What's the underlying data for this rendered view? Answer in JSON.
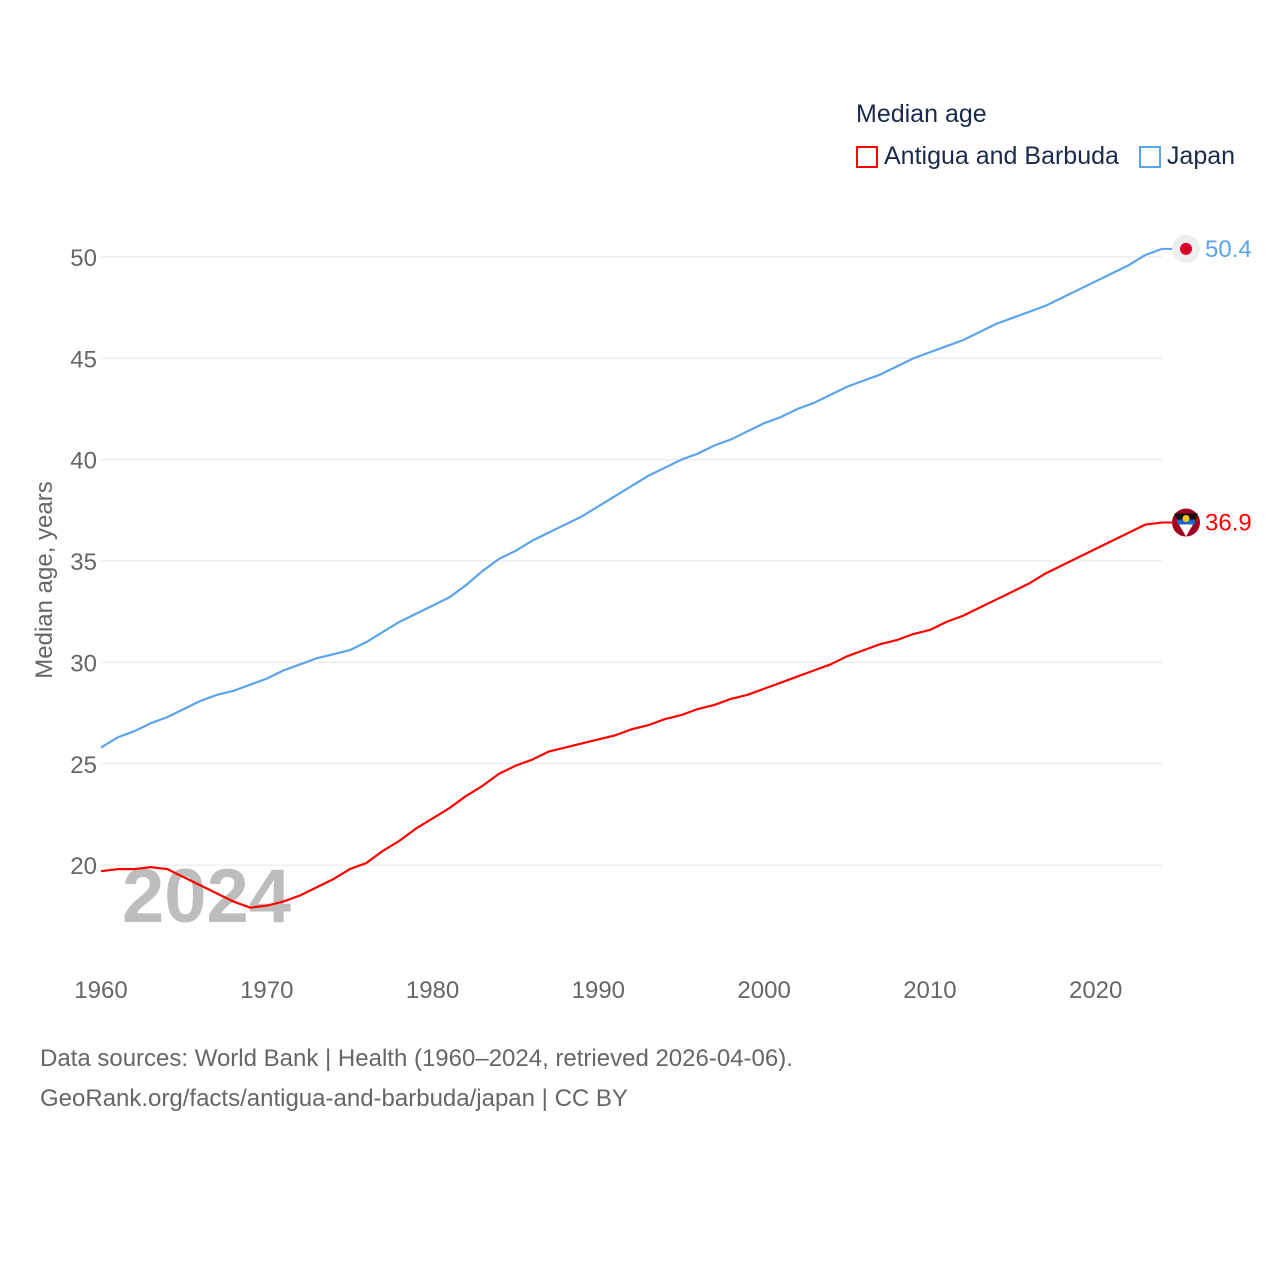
{
  "chart_data": {
    "type": "line",
    "title": "Median age",
    "ylabel": "Median age, years",
    "xlabel": "",
    "xlim": [
      1960,
      2024
    ],
    "ylim": [
      15,
      52
    ],
    "x_ticks": [
      1960,
      1970,
      1980,
      1990,
      2000,
      2010,
      2020
    ],
    "y_ticks": [
      20,
      25,
      30,
      35,
      40,
      45,
      50
    ],
    "grid": true,
    "legend_position": "top-right",
    "watermark_year": "2024",
    "x": [
      1960,
      1961,
      1962,
      1963,
      1964,
      1965,
      1966,
      1967,
      1968,
      1969,
      1970,
      1971,
      1972,
      1973,
      1974,
      1975,
      1976,
      1977,
      1978,
      1979,
      1980,
      1981,
      1982,
      1983,
      1984,
      1985,
      1986,
      1987,
      1988,
      1989,
      1990,
      1991,
      1992,
      1993,
      1994,
      1995,
      1996,
      1997,
      1998,
      1999,
      2000,
      2001,
      2002,
      2003,
      2004,
      2005,
      2006,
      2007,
      2008,
      2009,
      2010,
      2011,
      2012,
      2013,
      2014,
      2015,
      2016,
      2017,
      2018,
      2019,
      2020,
      2021,
      2022,
      2023,
      2024
    ],
    "series": [
      {
        "name": "Antigua and Barbuda",
        "color": "#ff0000",
        "end_label": "36.9",
        "values": [
          19.7,
          19.8,
          19.8,
          19.9,
          19.8,
          19.4,
          19.0,
          18.6,
          18.2,
          17.9,
          18.0,
          18.2,
          18.5,
          18.9,
          19.3,
          19.8,
          20.1,
          20.7,
          21.2,
          21.8,
          22.3,
          22.8,
          23.4,
          23.9,
          24.5,
          24.9,
          25.2,
          25.6,
          25.8,
          26.0,
          26.2,
          26.4,
          26.7,
          26.9,
          27.2,
          27.4,
          27.7,
          27.9,
          28.2,
          28.4,
          28.7,
          29.0,
          29.3,
          29.6,
          29.9,
          30.3,
          30.6,
          30.9,
          31.1,
          31.4,
          31.6,
          32.0,
          32.3,
          32.7,
          33.1,
          33.5,
          33.9,
          34.4,
          34.8,
          35.2,
          35.6,
          36.0,
          36.4,
          36.8,
          36.9
        ]
      },
      {
        "name": "Japan",
        "color": "#5ba4ec",
        "end_label": "50.4",
        "values": [
          25.8,
          26.3,
          26.6,
          27.0,
          27.3,
          27.7,
          28.1,
          28.4,
          28.6,
          28.9,
          29.2,
          29.6,
          29.9,
          30.2,
          30.4,
          30.6,
          31.0,
          31.5,
          32.0,
          32.4,
          32.8,
          33.2,
          33.8,
          34.5,
          35.1,
          35.5,
          36.0,
          36.4,
          36.8,
          37.2,
          37.7,
          38.2,
          38.7,
          39.2,
          39.6,
          40.0,
          40.3,
          40.7,
          41.0,
          41.4,
          41.8,
          42.1,
          42.5,
          42.8,
          43.2,
          43.6,
          43.9,
          44.2,
          44.6,
          45.0,
          45.3,
          45.6,
          45.9,
          46.3,
          46.7,
          47.0,
          47.3,
          47.6,
          48.0,
          48.4,
          48.8,
          49.2,
          49.6,
          50.1,
          50.4
        ]
      }
    ]
  },
  "sources": {
    "line1": "Data sources: World Bank | Health (1960–2024, retrieved 2026-04-06).",
    "line2": "GeoRank.org/facts/antigua-and-barbuda/japan | CC BY"
  }
}
